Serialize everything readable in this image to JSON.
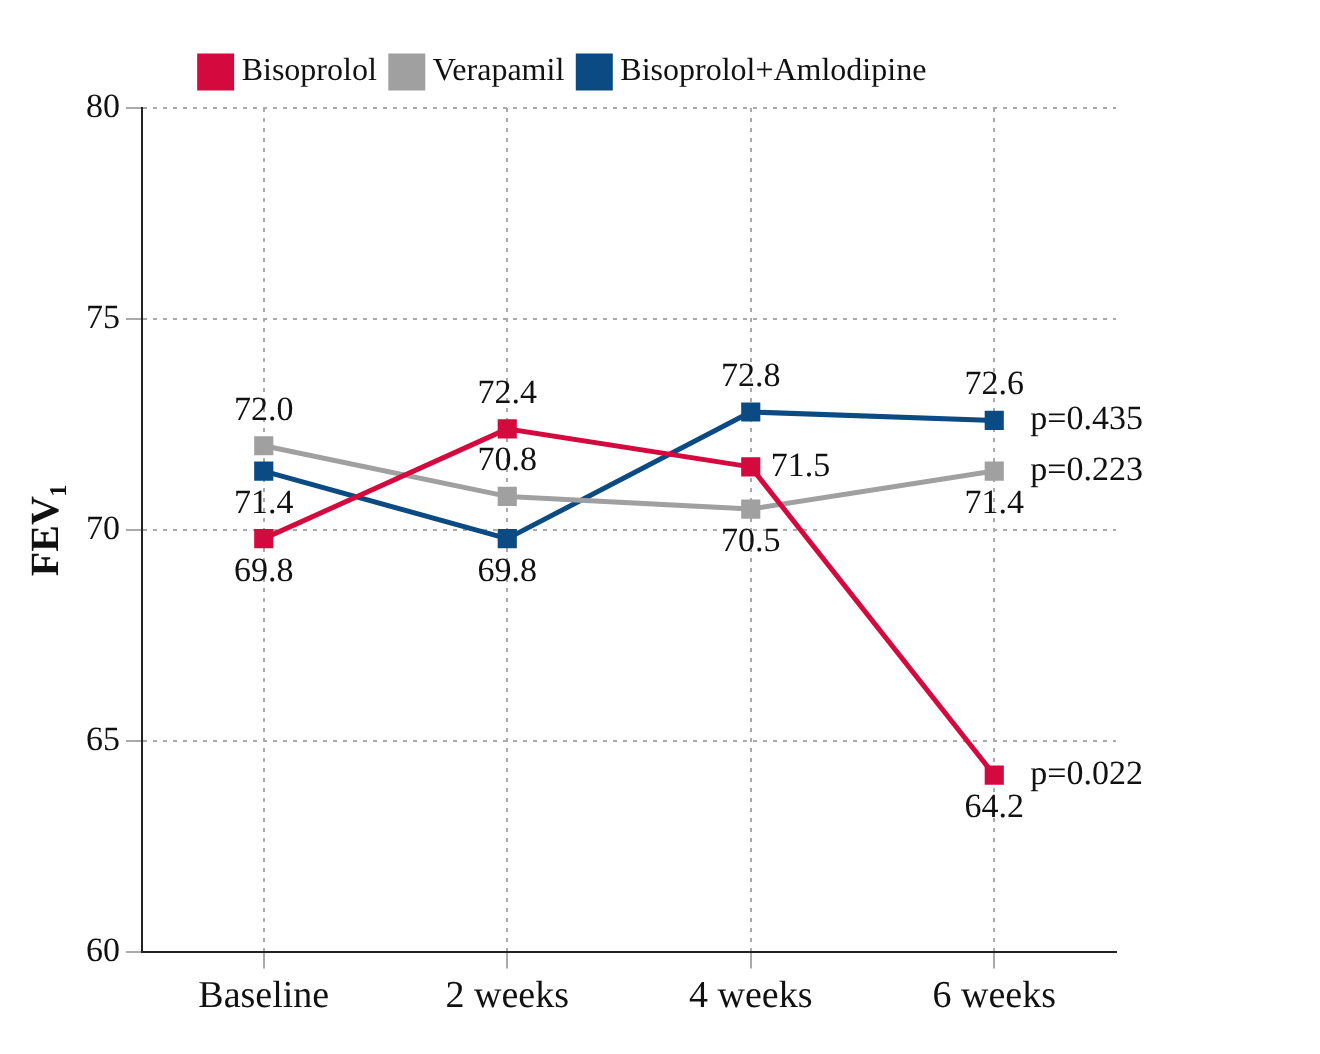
{
  "chart_data": {
    "type": "line",
    "ylabel": "FEV₁",
    "categories": [
      "Baseline",
      "2 weeks",
      "4 weeks",
      "6 weeks"
    ],
    "series": [
      {
        "name": "Bisoprolol",
        "color": "#d40a3f",
        "values": [
          69.8,
          72.4,
          71.5,
          64.2
        ],
        "value_labels": [
          "69.8",
          "72.4",
          "71.5",
          "64.2"
        ]
      },
      {
        "name": "Verapamil",
        "color": "#a0a0a0",
        "values": [
          72.0,
          70.8,
          70.5,
          71.4
        ],
        "value_labels": [
          "72.0",
          "70.8",
          "70.5",
          "71.4"
        ]
      },
      {
        "name": "Bisoprolol+Amlodipine",
        "color": "#0b4a82",
        "values": [
          71.4,
          69.8,
          72.8,
          72.6
        ],
        "value_labels": [
          "71.4",
          "69.8",
          "72.8",
          "72.6"
        ]
      }
    ],
    "ylim": [
      60,
      80
    ],
    "yticks": [
      60,
      65,
      70,
      75,
      80
    ],
    "grid": true,
    "line_style": "solid",
    "marker": "square",
    "legend": "top",
    "annotations": [
      {
        "text": "p=0.022",
        "x": "6 weeks",
        "y": 64.2
      },
      {
        "text": "p=0.223",
        "x": "6 weeks",
        "y": 71.4
      },
      {
        "text": "p=0.435",
        "x": "6 weeks",
        "y": 72.6
      }
    ]
  }
}
